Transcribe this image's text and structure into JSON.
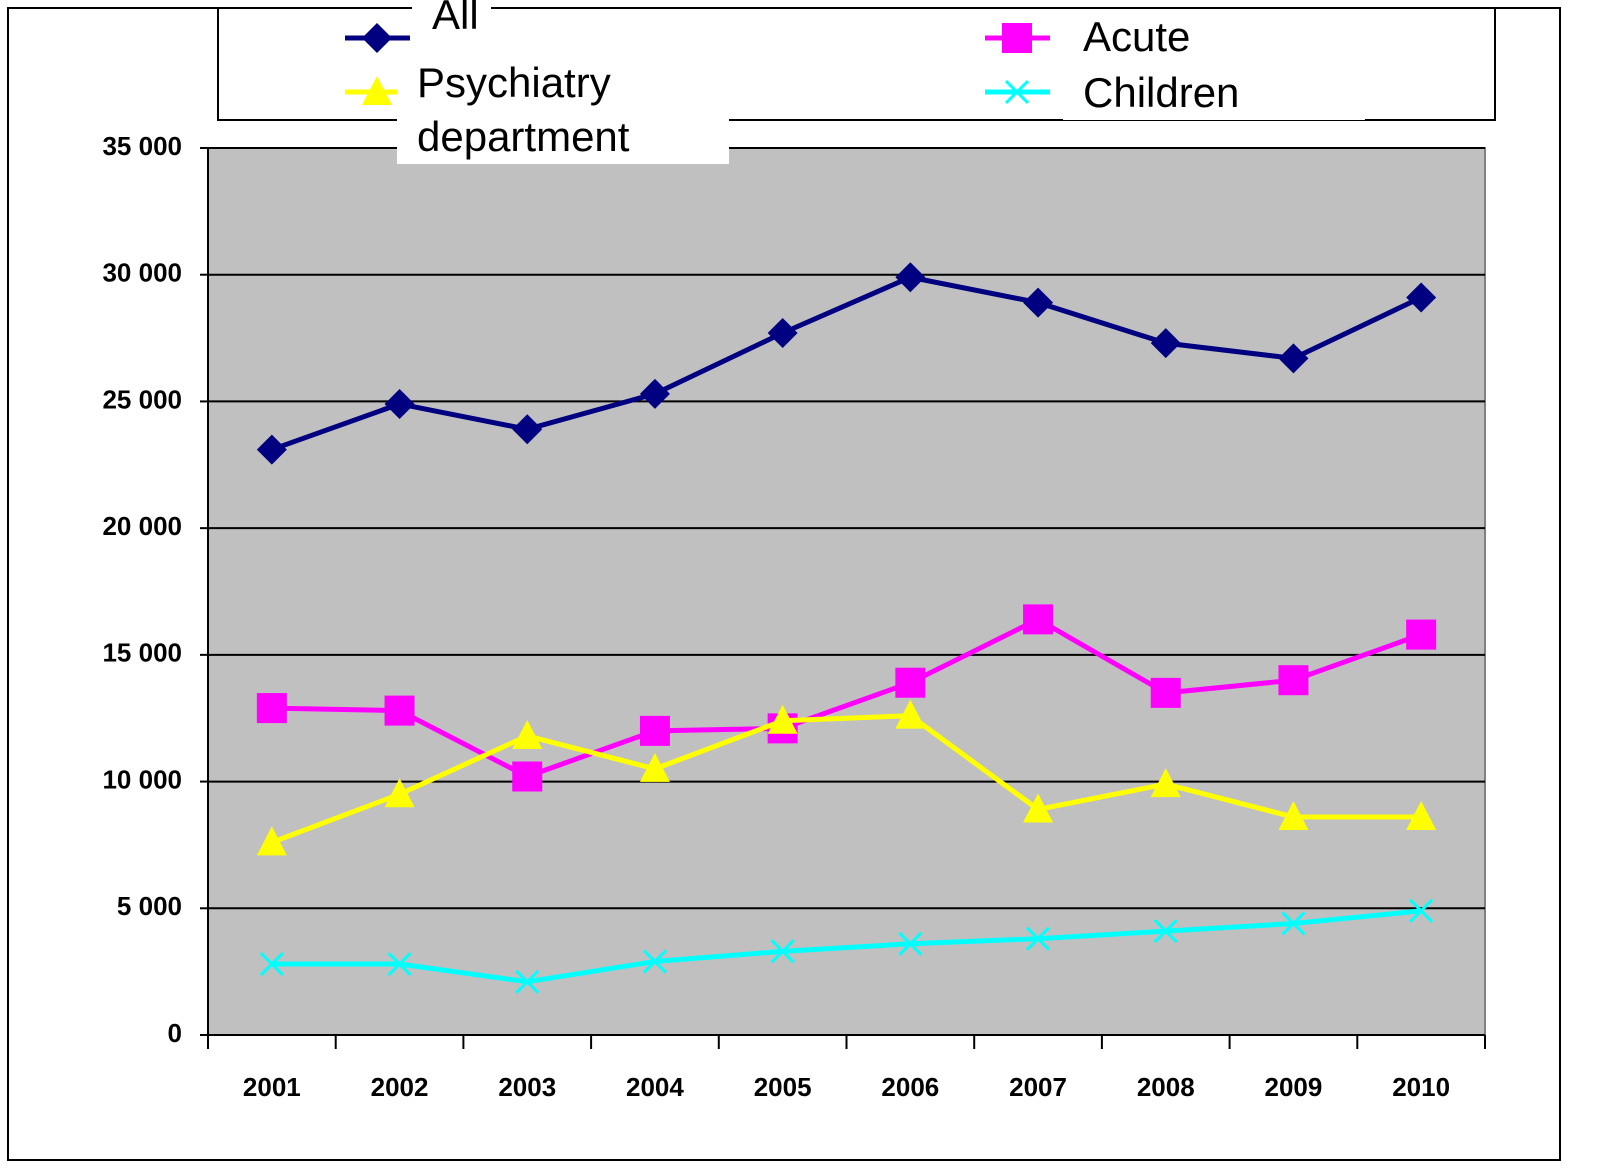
{
  "chart_data": {
    "type": "line",
    "categories": [
      "2001",
      "2002",
      "2003",
      "2004",
      "2005",
      "2006",
      "2007",
      "2008",
      "2009",
      "2010"
    ],
    "series": [
      {
        "name": "All",
        "color": "#000080",
        "marker": "diamond",
        "values": [
          23100,
          24900,
          23900,
          25300,
          27700,
          29900,
          28900,
          27300,
          26700,
          29100
        ]
      },
      {
        "name": "Acute department",
        "color": "#ff00ff",
        "marker": "square",
        "values": [
          12900,
          12800,
          10200,
          12000,
          12100,
          13900,
          16400,
          13500,
          14000,
          15800
        ]
      },
      {
        "name": "Psychiatry department",
        "color": "#ffff00",
        "marker": "triangle",
        "values": [
          7600,
          9500,
          11800,
          10500,
          12400,
          12600,
          8900,
          9900,
          8600,
          8600
        ]
      },
      {
        "name": "Children",
        "color": "#00ffff",
        "marker": "x",
        "values": [
          2800,
          2800,
          2100,
          2900,
          3300,
          3600,
          3800,
          4100,
          4400,
          4900
        ]
      }
    ],
    "ylim": [
      0,
      35000
    ],
    "yticks": [
      0,
      {
        "value": 5000,
        "label": "5 000"
      },
      {
        "value": 10000,
        "label": "10 000"
      },
      {
        "value": 15000,
        "label": "15 000"
      },
      {
        "value": 20000,
        "label": "20 000"
      },
      {
        "value": 25000,
        "label": "25 000"
      },
      {
        "value": 30000,
        "label": "30 000"
      },
      {
        "value": 35000,
        "label": "35 000"
      }
    ],
    "grid": true,
    "background": "#c0c0c0"
  }
}
